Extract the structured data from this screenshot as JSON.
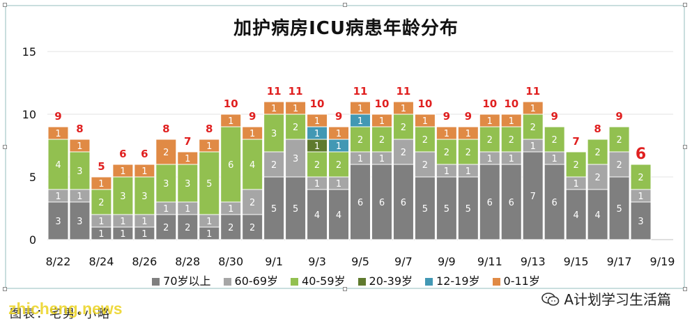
{
  "chart_data": {
    "type": "bar",
    "stacked": true,
    "title": "加护病房ICU病患年龄分布",
    "ylim": [
      0,
      15
    ],
    "yticks": [
      "0",
      "5",
      "10",
      "15"
    ],
    "grid": true,
    "legend_position": "bottom",
    "categories": [
      "8/22",
      "8/23",
      "8/24",
      "8/25",
      "8/26",
      "8/27",
      "8/28",
      "8/29",
      "8/30",
      "8/31",
      "9/1",
      "9/2",
      "9/3",
      "9/4",
      "9/5",
      "9/6",
      "9/7",
      "9/8",
      "9/9",
      "9/10",
      "9/11",
      "9/12",
      "9/13",
      "9/14",
      "9/15",
      "9/16",
      "9/17",
      "9/18",
      "9/19"
    ],
    "x_tick_labels": [
      "8/22",
      "",
      "8/24",
      "",
      "8/26",
      "",
      "8/28",
      "",
      "8/30",
      "",
      "9/1",
      "",
      "9/3",
      "",
      "9/5",
      "",
      "9/7",
      "",
      "9/9",
      "",
      "9/11",
      "",
      "9/13",
      "",
      "9/15",
      "",
      "9/17",
      "",
      "9/19"
    ],
    "totals": [
      "9",
      "8",
      "5",
      "6",
      "6",
      "8",
      "7",
      "8",
      "10",
      "9",
      "11",
      "11",
      "10",
      "9",
      "11",
      "10",
      "11",
      "10",
      "9",
      "9",
      "10",
      "10",
      "11",
      "9",
      "7",
      "8",
      "9",
      "6",
      ""
    ],
    "last_total_highlight": "6",
    "series": [
      {
        "name": "70岁以上",
        "color": "#7f7f7f",
        "values": [
          3,
          3,
          1,
          1,
          1,
          2,
          2,
          1,
          2,
          2,
          5,
          5,
          4,
          4,
          6,
          6,
          6,
          5,
          5,
          5,
          6,
          6,
          7,
          6,
          4,
          4,
          5,
          3,
          null
        ]
      },
      {
        "name": "60-69岁",
        "color": "#a6a6a6",
        "values": [
          1,
          1,
          1,
          1,
          1,
          1,
          1,
          1,
          1,
          2,
          2,
          3,
          1,
          1,
          1,
          1,
          2,
          2,
          1,
          1,
          1,
          1,
          1,
          1,
          1,
          2,
          2,
          1,
          null
        ]
      },
      {
        "name": "40-59岁",
        "color": "#92c050",
        "values": [
          4,
          3,
          2,
          3,
          3,
          3,
          3,
          5,
          6,
          4,
          3,
          2,
          2,
          2,
          2,
          2,
          2,
          2,
          2,
          2,
          2,
          2,
          2,
          2,
          2,
          2,
          2,
          2,
          null
        ]
      },
      {
        "name": "20-39岁",
        "color": "#5f7a2e",
        "values": [
          0,
          0,
          0,
          0,
          0,
          0,
          0,
          0,
          0,
          0,
          0,
          0,
          1,
          0,
          0,
          0,
          0,
          0,
          0,
          0,
          0,
          0,
          0,
          0,
          0,
          0,
          0,
          0,
          null
        ]
      },
      {
        "name": "12-19岁",
        "color": "#4298b4",
        "values": [
          0,
          0,
          0,
          0,
          0,
          0,
          0,
          0,
          0,
          0,
          0,
          0,
          1,
          1,
          1,
          0,
          0,
          0,
          0,
          0,
          0,
          0,
          0,
          0,
          0,
          0,
          0,
          0,
          null
        ]
      },
      {
        "name": "0-11岁",
        "color": "#e08a45",
        "values": [
          1,
          1,
          1,
          1,
          1,
          2,
          1,
          1,
          1,
          1,
          1,
          1,
          1,
          1,
          1,
          1,
          1,
          1,
          1,
          1,
          1,
          1,
          1,
          0,
          0,
          0,
          0,
          0,
          null
        ]
      }
    ]
  },
  "footer": {
    "source": "图表：宅男•小略",
    "watermark": "zhicheng.news",
    "brand": "A计划学习生活篇",
    "brand_icon": "wechat-icon"
  }
}
